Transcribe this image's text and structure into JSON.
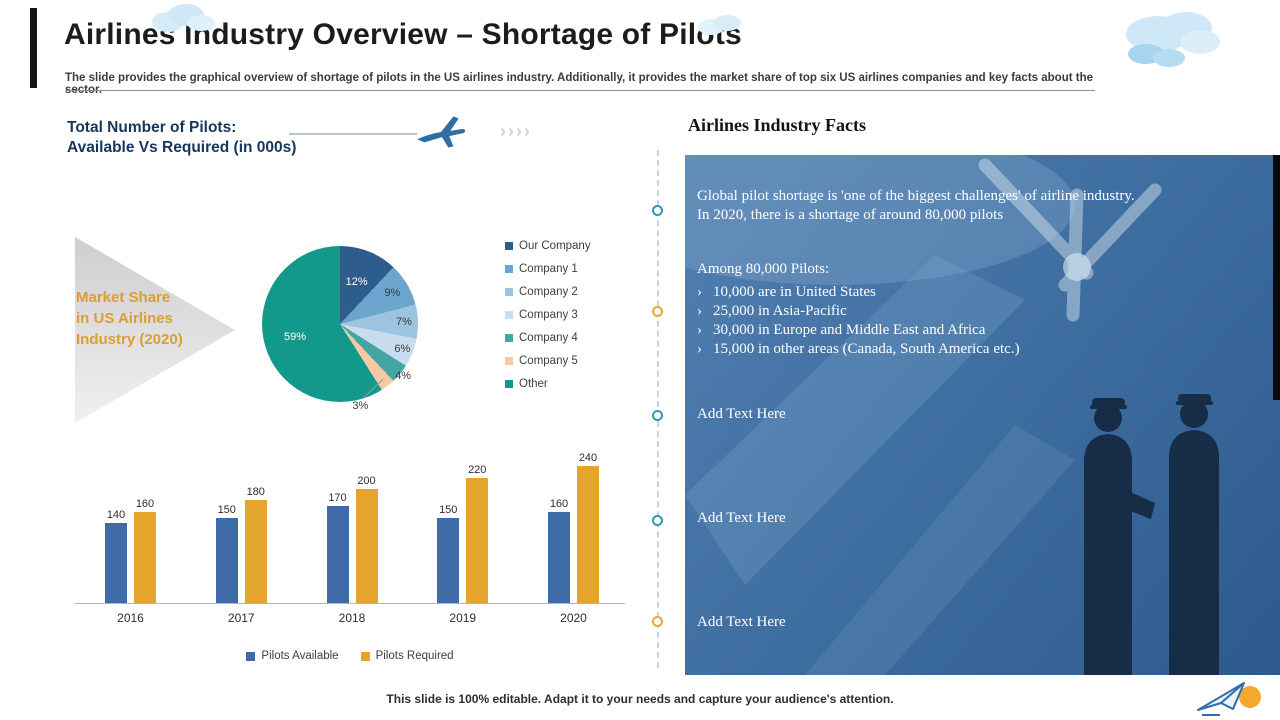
{
  "slide": {
    "title": "Airlines Industry Overview – Shortage of Pilots",
    "subtitle": "The slide provides the graphical overview of shortage of pilots in the US airlines industry. Additionally, it provides the market share of top six US airlines companies and key facts about the sector.",
    "footer": "This slide is 100% editable. Adapt it to your needs and capture your audience's attention."
  },
  "left": {
    "chart_heading_line1": "Total Number of Pilots:",
    "chart_heading_line2": "Available Vs Required (in 000s)",
    "market_share_label": [
      "Market Share",
      "in US Airlines",
      "Industry (2020)"
    ]
  },
  "decor": {
    "chevrons": "››››",
    "icons": [
      "airplane-icon",
      "cloud-icon",
      "paper-plane-icon"
    ]
  },
  "facts": {
    "heading": "Airlines Industry Facts",
    "para1_line1": "Global pilot shortage is 'one of the biggest challenges' of airline industry.",
    "para1_line2": "In 2020, there is a shortage of around 80,000 pilots",
    "among_heading": "Among 80,000 Pilots:",
    "bullet_marker": "›",
    "bullets": [
      "10,000 are in United States",
      "25,000 in Asia-Pacific",
      "30,000 in Europe and Middle East and Africa",
      "15,000 in other areas (Canada, South America etc.)"
    ],
    "placeholders": [
      "Add Text Here",
      "Add Text Here",
      "Add Text Here"
    ]
  },
  "colors": {
    "heading_blue": "#17365d",
    "orange_accent": "#dd9d33",
    "panel_blue": "#3e6da0",
    "divider_teal": "#2e9bab",
    "divider_orange": "#eaa83c"
  },
  "chart_data": [
    {
      "type": "pie",
      "title": "Market Share in US Airlines Industry (2020)",
      "legend_position": "right",
      "slices": [
        {
          "label": "Our Company",
          "value": 12,
          "pct_label": "12%",
          "color": "#2e5c8d"
        },
        {
          "label": "Company 1",
          "value": 9,
          "pct_label": "9%",
          "color": "#6ca6cf"
        },
        {
          "label": "Company 2",
          "value": 7,
          "pct_label": "7%",
          "color": "#9cc4e0"
        },
        {
          "label": "Company 3",
          "value": 6,
          "pct_label": "6%",
          "color": "#c7dcec"
        },
        {
          "label": "Company 4",
          "value": 4,
          "pct_label": "4%",
          "color": "#45a5a5"
        },
        {
          "label": "Company 5",
          "value": 3,
          "pct_label": "3%",
          "color": "#f4caa4"
        },
        {
          "label": "Other",
          "value": 59,
          "pct_label": "59%",
          "color": "#13998b"
        }
      ]
    },
    {
      "type": "bar",
      "title": "Total Number of Pilots: Available Vs Required (in 000s)",
      "categories": [
        "2016",
        "2017",
        "2018",
        "2019",
        "2020"
      ],
      "series": [
        {
          "name": "Pilots Available",
          "color": "#3f6ca6",
          "values": [
            140,
            150,
            170,
            150,
            160
          ]
        },
        {
          "name": "Pilots Required",
          "color": "#e3a52b",
          "values": [
            160,
            180,
            200,
            220,
            240
          ]
        }
      ],
      "ylim": [
        0,
        240
      ],
      "value_labels": true,
      "legend_position": "bottom"
    }
  ]
}
